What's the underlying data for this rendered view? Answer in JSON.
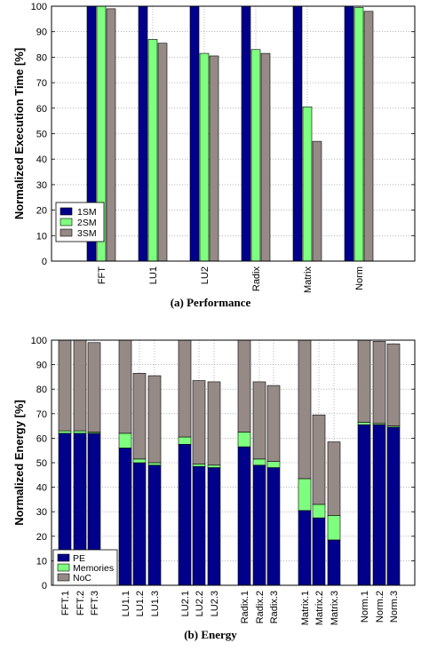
{
  "chart_data": [
    {
      "type": "bar",
      "caption": "(a) Performance",
      "ylabel": "Normalized Execution Time [%]",
      "ylim": [
        0,
        100
      ],
      "yticks": [
        0,
        10,
        20,
        30,
        40,
        50,
        60,
        70,
        80,
        90,
        100
      ],
      "grid": true,
      "legend_position": "bottom-left",
      "categories": [
        "FFT",
        "LU1",
        "LU2",
        "Radix",
        "Matrix",
        "Norm"
      ],
      "series": [
        {
          "name": "1SM",
          "color": "#00008b",
          "values": [
            100,
            100,
            100,
            100,
            100,
            100
          ]
        },
        {
          "name": "2SM",
          "color": "#7fff7f",
          "values": [
            100,
            87,
            81.5,
            83,
            60.5,
            99.5
          ]
        },
        {
          "name": "3SM",
          "color": "#968a86",
          "values": [
            99,
            85.5,
            80.5,
            81.5,
            47,
            98
          ]
        }
      ]
    },
    {
      "type": "bar",
      "stacked": true,
      "caption": "(b) Energy",
      "ylabel": "Normalized Energy [%]",
      "ylim": [
        0,
        100
      ],
      "yticks": [
        0,
        10,
        20,
        30,
        40,
        50,
        60,
        70,
        80,
        90,
        100
      ],
      "grid": true,
      "legend_position": "bottom-left",
      "categories": [
        "FFT.1",
        "FFT.2",
        "FFT.3",
        "LU1.1",
        "LU1.2",
        "LU1.3",
        "LU2.1",
        "LU2.2",
        "LU2.3",
        "Radix.1",
        "Radix.2",
        "Radix.3",
        "Matrix.1",
        "Matrix.2",
        "Matrix.3",
        "Norm.1",
        "Norm.2",
        "Norm.3"
      ],
      "series": [
        {
          "name": "PE",
          "color": "#00008b",
          "values": [
            62,
            62,
            62,
            56,
            50,
            49,
            57.5,
            48.5,
            48,
            56.5,
            49,
            48,
            30.5,
            27.5,
            18.5,
            65.5,
            65.5,
            64.5
          ]
        },
        {
          "name": "Memories",
          "color": "#7fff7f",
          "values": [
            1,
            1,
            0.5,
            6,
            1.5,
            1,
            3,
            1,
            1,
            6,
            2.5,
            2.5,
            13,
            5.5,
            10,
            1,
            0.5,
            0.5
          ]
        },
        {
          "name": "NoC",
          "color": "#968a86",
          "values": [
            37,
            37,
            36.5,
            38,
            35,
            35.5,
            39.5,
            34,
            34,
            37.5,
            31.5,
            31,
            56.5,
            36.5,
            30,
            33.5,
            33.5,
            33.5
          ]
        }
      ]
    }
  ]
}
